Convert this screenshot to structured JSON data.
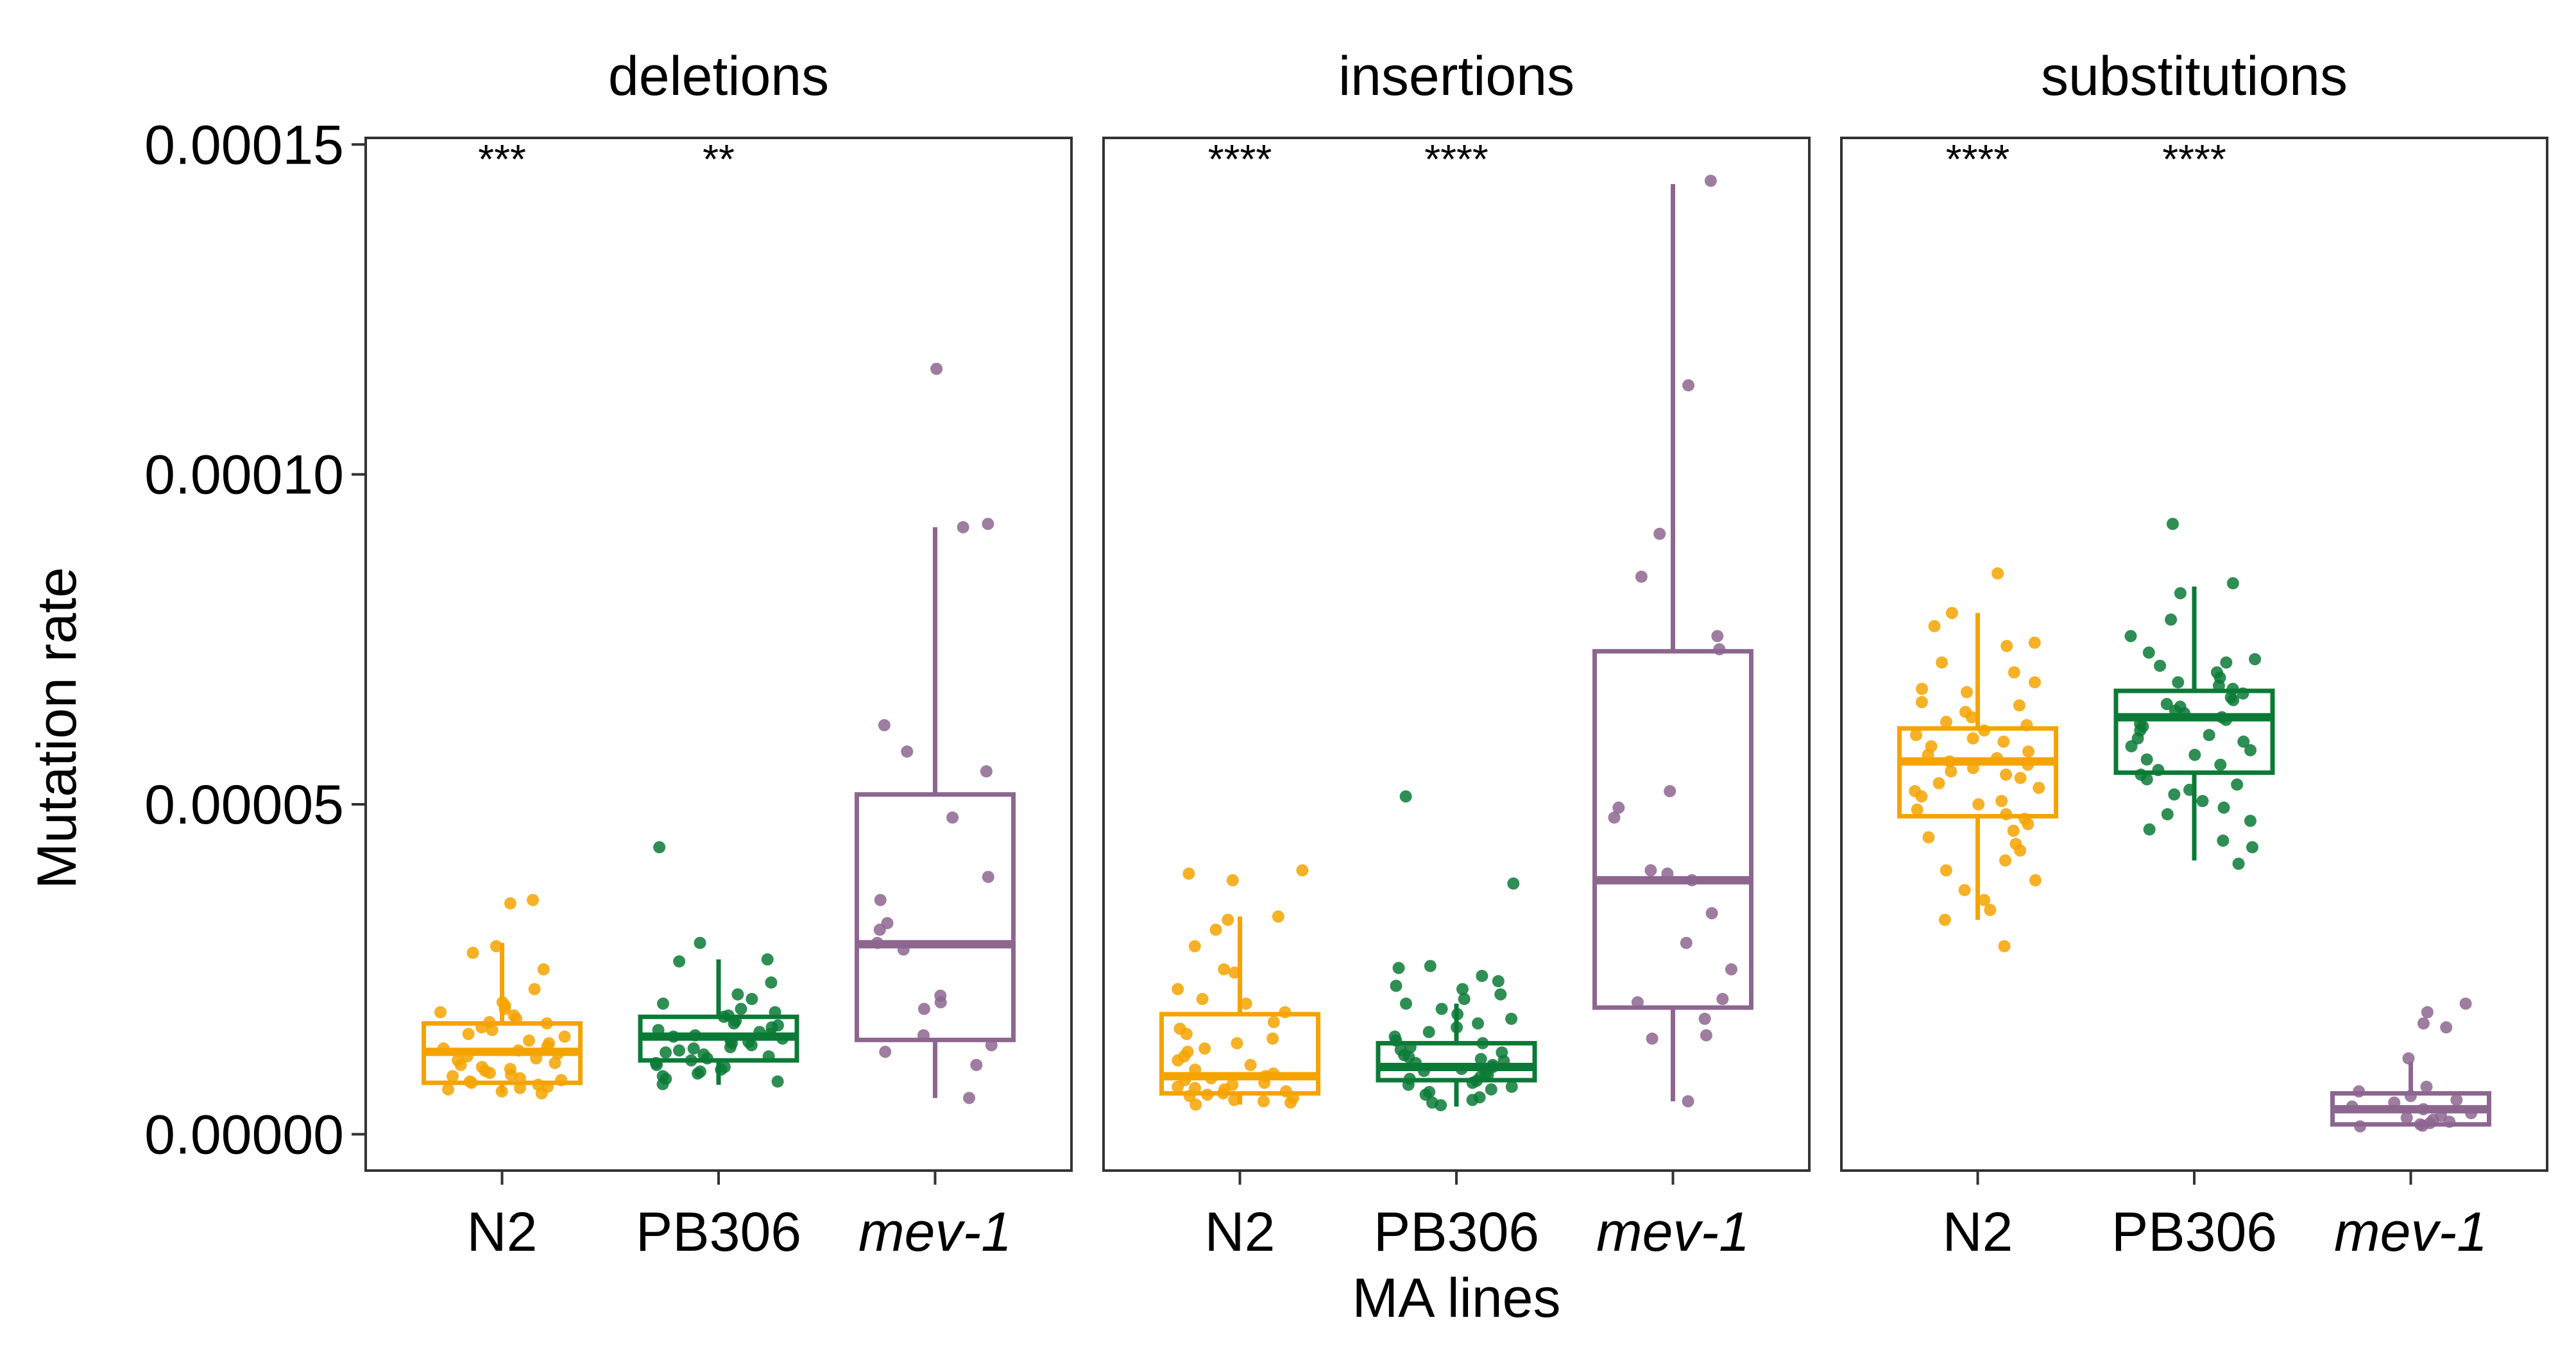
{
  "chart_data": {
    "type": "box",
    "ylabel": "Mutation rate",
    "xlabel": "MA lines",
    "ylim": [
      -5.5e-06,
      0.000151
    ],
    "yticks": [
      {
        "value": 0.0,
        "label": "0.00000"
      },
      {
        "value": 5e-05,
        "label": "0.00005"
      },
      {
        "value": 0.0001,
        "label": "0.00010"
      },
      {
        "value": 0.00015,
        "label": "0.00015"
      }
    ],
    "categories": [
      "N2",
      "PB306",
      "mev-1"
    ],
    "italic_categories": [
      "mev-1"
    ],
    "colors": {
      "N2": "#F5A300",
      "PB306": "#0B7A36",
      "mev-1": "#8D6690"
    },
    "grid": false,
    "legend": "none",
    "facets": [
      {
        "title": "deletions",
        "significance": [
          "***",
          "**",
          ""
        ],
        "boxes": [
          {
            "group": "N2",
            "whisker_low": 6.2e-06,
            "q1": 7.8e-06,
            "median": 1.25e-05,
            "q3": 1.68e-05,
            "whisker_high": 2.9e-05,
            "points": [
              3.55e-05,
              3.5e-05,
              2.85e-05,
              2.75e-05,
              2.5e-05,
              2.2e-05,
              2e-05,
              1.95e-05,
              1.9e-05,
              1.85e-05,
              1.8e-05,
              1.75e-05,
              1.7e-05,
              1.68e-05,
              1.62e-05,
              1.58e-05,
              1.52e-05,
              1.48e-05,
              1.42e-05,
              1.38e-05,
              1.33e-05,
              1.3e-05,
              1.27e-05,
              1.22e-05,
              1.18e-05,
              1.15e-05,
              1.12e-05,
              1.08e-05,
              1.05e-05,
              1.02e-05,
              9.9e-06,
              9.6e-06,
              9.3e-06,
              9e-06,
              8.8e-06,
              8.5e-06,
              8.2e-06,
              8e-06,
              7.8e-06,
              7.5e-06,
              7.2e-06,
              7e-06,
              6.8e-06,
              6.5e-06,
              6.2e-06
            ]
          },
          {
            "group": "PB306",
            "whisker_low": 7.5e-06,
            "q1": 1.12e-05,
            "median": 1.48e-05,
            "q3": 1.78e-05,
            "whisker_high": 2.65e-05,
            "points": [
              4.35e-05,
              2.9e-05,
              2.65e-05,
              2.62e-05,
              2.3e-05,
              2.12e-05,
              2.05e-05,
              1.98e-05,
              1.9e-05,
              1.85e-05,
              1.8e-05,
              1.78e-05,
              1.72e-05,
              1.68e-05,
              1.65e-05,
              1.62e-05,
              1.58e-05,
              1.55e-05,
              1.52e-05,
              1.5e-05,
              1.48e-05,
              1.45e-05,
              1.43e-05,
              1.4e-05,
              1.38e-05,
              1.35e-05,
              1.32e-05,
              1.3e-05,
              1.27e-05,
              1.24e-05,
              1.21e-05,
              1.18e-05,
              1.15e-05,
              1.12e-05,
              1.08e-05,
              1.05e-05,
              1.02e-05,
              9.8e-06,
              9.5e-06,
              9.2e-06,
              8.8e-06,
              8.4e-06,
              8e-06,
              7.6e-06
            ]
          },
          {
            "group": "mev-1",
            "whisker_low": 5.5e-06,
            "q1": 1.43e-05,
            "median": 2.88e-05,
            "q3": 5.15e-05,
            "whisker_high": 9.2e-05,
            "points": [
              0.000116,
              9.25e-05,
              9.2e-05,
              6.2e-05,
              5.8e-05,
              5.5e-05,
              4.8e-05,
              3.9e-05,
              3.55e-05,
              3.2e-05,
              3.1e-05,
              2.9e-05,
              2.8e-05,
              2.1e-05,
              2e-05,
              1.9e-05,
              1.5e-05,
              1.35e-05,
              1.25e-05,
              1.05e-05,
              5.5e-06
            ]
          }
        ]
      },
      {
        "title": "insertions",
        "significance": [
          "****",
          "****",
          ""
        ],
        "boxes": [
          {
            "group": "N2",
            "whisker_low": 4.5e-06,
            "q1": 6.2e-06,
            "median": 8.8e-06,
            "q3": 1.82e-05,
            "whisker_high": 3.3e-05,
            "points": [
              4e-05,
              3.95e-05,
              3.85e-05,
              3.3e-05,
              3.25e-05,
              3.1e-05,
              2.85e-05,
              2.5e-05,
              2.45e-05,
              2.2e-05,
              2.05e-05,
              1.98e-05,
              1.85e-05,
              1.7e-05,
              1.6e-05,
              1.52e-05,
              1.45e-05,
              1.38e-05,
              1.3e-05,
              1.25e-05,
              1.18e-05,
              1.12e-05,
              1.05e-05,
              9.8e-06,
              9.2e-06,
              8.8e-06,
              8.5e-06,
              8.2e-06,
              7.8e-06,
              7.5e-06,
              7.2e-06,
              7e-06,
              6.8e-06,
              6.5e-06,
              6.2e-06,
              6e-06,
              5.8e-06,
              5.5e-06,
              5.2e-06,
              5e-06,
              4.8e-06,
              4.5e-06
            ]
          },
          {
            "group": "PB306",
            "whisker_low": 4.2e-06,
            "q1": 8.2e-06,
            "median": 1.02e-05,
            "q3": 1.38e-05,
            "whisker_high": 1.98e-05,
            "points": [
              5.12e-05,
              3.8e-05,
              2.55e-05,
              2.52e-05,
              2.4e-05,
              2.32e-05,
              2.25e-05,
              2.2e-05,
              2.12e-05,
              2.05e-05,
              1.98e-05,
              1.9e-05,
              1.82e-05,
              1.75e-05,
              1.68e-05,
              1.62e-05,
              1.55e-05,
              1.48e-05,
              1.42e-05,
              1.38e-05,
              1.32e-05,
              1.28e-05,
              1.24e-05,
              1.2e-05,
              1.17e-05,
              1.14e-05,
              1.11e-05,
              1.08e-05,
              1.05e-05,
              1.02e-05,
              9.9e-06,
              9.6e-06,
              9.3e-06,
              9e-06,
              8.7e-06,
              8.4e-06,
              8.1e-06,
              7.8e-06,
              7.5e-06,
              7.2e-06,
              6.8e-06,
              6.4e-06,
              6e-06,
              5.6e-06,
              5.2e-06,
              4.8e-06,
              4.4e-06
            ]
          },
          {
            "group": "mev-1",
            "whisker_low": 5e-06,
            "q1": 1.92e-05,
            "median": 3.85e-05,
            "q3": 7.32e-05,
            "whisker_high": 0.000144,
            "points": [
              0.0001445,
              0.0001135,
              9.1e-05,
              8.45e-05,
              7.55e-05,
              7.35e-05,
              5.2e-05,
              4.95e-05,
              4.8e-05,
              4e-05,
              3.95e-05,
              3.85e-05,
              3.35e-05,
              2.9e-05,
              2.5e-05,
              2.05e-05,
              2e-05,
              1.75e-05,
              1.5e-05,
              1.45e-05,
              5e-06
            ]
          }
        ]
      },
      {
        "title": "substitutions",
        "significance": [
          "****",
          "****",
          ""
        ],
        "boxes": [
          {
            "group": "N2",
            "whisker_low": 3.25e-05,
            "q1": 4.82e-05,
            "median": 5.65e-05,
            "q3": 6.15e-05,
            "whisker_high": 7.9e-05,
            "points": [
              8.5e-05,
              7.9e-05,
              7.7e-05,
              7.45e-05,
              7.4e-05,
              7.15e-05,
              7e-05,
              6.85e-05,
              6.75e-05,
              6.7e-05,
              6.55e-05,
              6.5e-05,
              6.4e-05,
              6.32e-05,
              6.25e-05,
              6.2e-05,
              6.12e-05,
              6.05e-05,
              6e-05,
              5.95e-05,
              5.88e-05,
              5.8e-05,
              5.75e-05,
              5.7e-05,
              5.65e-05,
              5.6e-05,
              5.55e-05,
              5.5e-05,
              5.45e-05,
              5.4e-05,
              5.32e-05,
              5.25e-05,
              5.2e-05,
              5.12e-05,
              5.05e-05,
              5e-05,
              4.92e-05,
              4.85e-05,
              4.78e-05,
              4.7e-05,
              4.6e-05,
              4.5e-05,
              4.4e-05,
              4.3e-05,
              4.15e-05,
              4e-05,
              3.85e-05,
              3.7e-05,
              3.55e-05,
              3.4e-05,
              3.25e-05,
              2.85e-05
            ]
          },
          {
            "group": "PB306",
            "whisker_low": 4.15e-05,
            "q1": 5.48e-05,
            "median": 6.32e-05,
            "q3": 6.72e-05,
            "whisker_high": 8.3e-05,
            "points": [
              9.25e-05,
              8.35e-05,
              8.2e-05,
              7.8e-05,
              7.55e-05,
              7.3e-05,
              7.2e-05,
              7.15e-05,
              7.1e-05,
              7e-05,
              6.92e-05,
              6.85e-05,
              6.8e-05,
              6.75e-05,
              6.68e-05,
              6.62e-05,
              6.58e-05,
              6.52e-05,
              6.48e-05,
              6.42e-05,
              6.38e-05,
              6.32e-05,
              6.28e-05,
              6.22e-05,
              6.18e-05,
              6.12e-05,
              6.05e-05,
              6e-05,
              5.95e-05,
              5.88e-05,
              5.82e-05,
              5.75e-05,
              5.68e-05,
              5.6e-05,
              5.52e-05,
              5.45e-05,
              5.38e-05,
              5.3e-05,
              5.22e-05,
              5.15e-05,
              5.05e-05,
              4.95e-05,
              4.85e-05,
              4.75e-05,
              4.62e-05,
              4.45e-05,
              4.35e-05,
              4.1e-05
            ]
          },
          {
            "group": "mev-1",
            "whisker_low": 1.2e-06,
            "q1": 1.5e-06,
            "median": 3.8e-06,
            "q3": 6.2e-06,
            "whisker_high": 1.1e-05,
            "points": [
              1.98e-05,
              1.85e-05,
              1.68e-05,
              1.62e-05,
              1.15e-05,
              7.2e-06,
              6.5e-06,
              5.8e-06,
              5.2e-06,
              4.8e-06,
              4.2e-06,
              3.8e-06,
              3.2e-06,
              2.8e-06,
              2.5e-06,
              2.2e-06,
              1.9e-06,
              1.7e-06,
              1.5e-06,
              1.3e-06,
              1.2e-06
            ]
          }
        ]
      }
    ]
  }
}
